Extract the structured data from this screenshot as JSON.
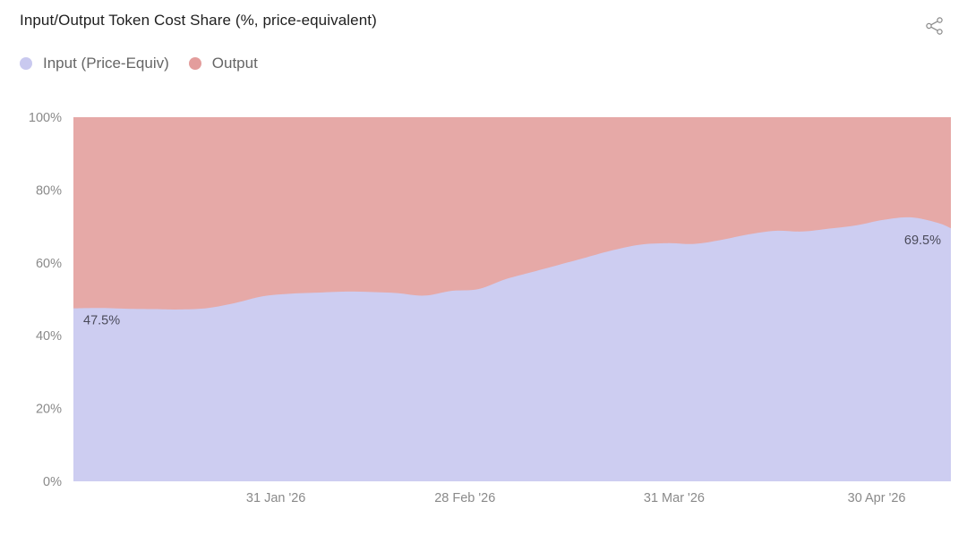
{
  "header": {
    "title": "Input/Output Token Cost Share (%, price-equivalent)"
  },
  "icons": {
    "share": "share-icon"
  },
  "colors": {
    "input": "#cdcdf1",
    "output": "#e6a9a7",
    "input_swatch": "#c9c9ef",
    "output_swatch": "#e39d9c",
    "axis_text": "#8a8a8a",
    "label_text": "#4a4a5a"
  },
  "chart_data": {
    "type": "area",
    "stacked": true,
    "normalized_percent": true,
    "x_tick_labels": [
      "31 Jan '26",
      "28 Feb '26",
      "31 Mar '26",
      "30 Apr '26"
    ],
    "x_tick_dates": [
      "2026-01-31",
      "2026-02-28",
      "2026-03-31",
      "2026-04-30"
    ],
    "x_range": [
      "2026-01-01",
      "2026-05-11"
    ],
    "y_tick_labels": [
      "0%",
      "20%",
      "40%",
      "60%",
      "80%",
      "100%"
    ],
    "y_ticks": [
      0,
      20,
      40,
      60,
      80,
      100
    ],
    "ylim": [
      0,
      100
    ],
    "grid": false,
    "legend_position": "top-left",
    "x": [
      "2026-01-01",
      "2026-01-05",
      "2026-01-09",
      "2026-01-13",
      "2026-01-17",
      "2026-01-21",
      "2026-01-25",
      "2026-01-29",
      "2026-02-02",
      "2026-02-06",
      "2026-02-10",
      "2026-02-14",
      "2026-02-18",
      "2026-02-22",
      "2026-02-26",
      "2026-03-02",
      "2026-03-06",
      "2026-03-10",
      "2026-03-14",
      "2026-03-18",
      "2026-03-22",
      "2026-03-26",
      "2026-03-30",
      "2026-04-03",
      "2026-04-07",
      "2026-04-11",
      "2026-04-15",
      "2026-04-19",
      "2026-04-23",
      "2026-04-27",
      "2026-05-01",
      "2026-05-05",
      "2026-05-09",
      "2026-05-11"
    ],
    "series": [
      {
        "name": "Input (Price-Equiv)",
        "values": [
          47.5,
          47.6,
          47.4,
          47.3,
          47.2,
          47.6,
          49.0,
          50.8,
          51.5,
          51.8,
          52.1,
          52.0,
          51.7,
          51.0,
          52.3,
          52.8,
          55.5,
          57.5,
          59.5,
          61.5,
          63.5,
          65.0,
          65.4,
          65.2,
          66.3,
          67.8,
          68.8,
          68.6,
          69.4,
          70.3,
          71.8,
          72.5,
          71.0,
          69.5
        ]
      },
      {
        "name": "Output",
        "values": [
          52.5,
          52.4,
          52.6,
          52.7,
          52.8,
          52.4,
          51.0,
          49.2,
          48.5,
          48.2,
          47.9,
          48.0,
          48.3,
          49.0,
          47.7,
          47.2,
          44.5,
          42.5,
          40.5,
          38.5,
          36.5,
          35.0,
          34.6,
          34.8,
          33.7,
          32.2,
          31.2,
          31.4,
          30.6,
          29.7,
          28.2,
          27.5,
          29.0,
          30.5
        ]
      }
    ],
    "annotations": [
      {
        "text": "47.5%",
        "anchor": "start"
      },
      {
        "text": "69.5%",
        "anchor": "end"
      }
    ]
  }
}
